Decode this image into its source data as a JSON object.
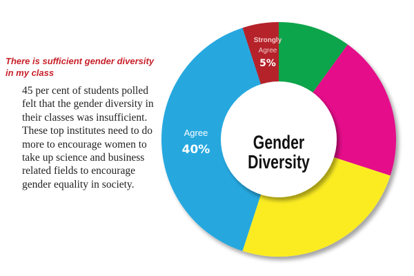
{
  "article": {
    "heading": "There is sufficient gender diversity in my class",
    "body": "45 per cent of students polled felt that the gender diversity in their classes was insufficient. These top institutes need to do more to encourage women to take up science and business related fields to encourage gender equality in society."
  },
  "chart_data": {
    "type": "pie",
    "variant": "donut",
    "title": "Gender Diversity",
    "title_lines": [
      "Gender",
      "Diversity"
    ],
    "start": "top",
    "direction": "clockwise",
    "slices": [
      {
        "label": "",
        "value": 10,
        "color": "#0da54b"
      },
      {
        "label": "",
        "value": 20,
        "color": "#e5118a"
      },
      {
        "label": "",
        "value": 25,
        "color": "#fbec21"
      },
      {
        "label": "Agree",
        "value": 40,
        "display": "40%",
        "color": "#27a8df"
      },
      {
        "label": "Strongly Agree",
        "label_lines": [
          "Strongly",
          "Agree"
        ],
        "value": 5,
        "display": "5%",
        "color": "#b5202a"
      }
    ]
  }
}
